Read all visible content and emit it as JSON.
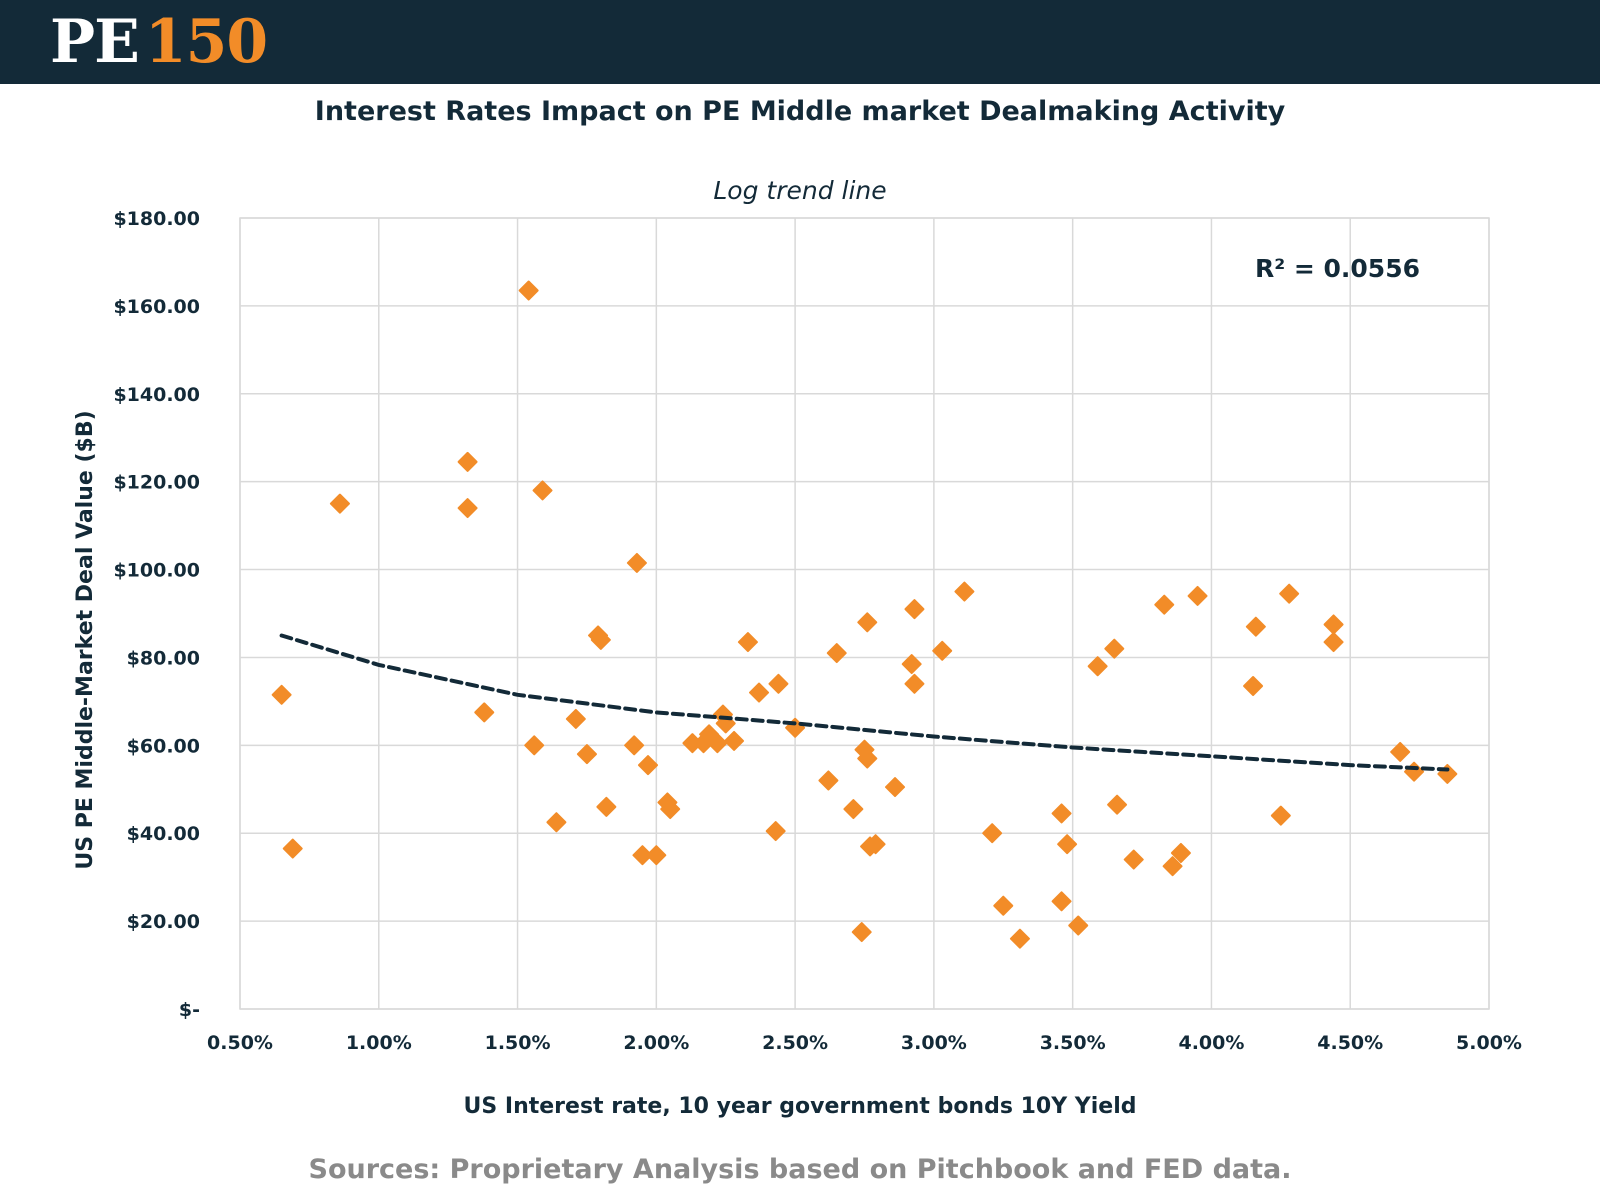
{
  "header": {
    "logo_pe": "PE",
    "logo_num": "150"
  },
  "title": "Interest Rates Impact on PE Middle market Dealmaking Activity",
  "source": "Sources: Proprietary Analysis based on Pitchbook and FED data.",
  "colors": {
    "header_bg": "#132a38",
    "accent": "#f28c28",
    "text_dark": "#132a38",
    "source_text": "#8a8a8a",
    "grid": "#d9d9d9",
    "trend": "#132a38"
  },
  "chart_data": {
    "type": "scatter",
    "subtitle": "Log trend line",
    "xlabel": "US Interest rate, 10 year government bonds 10Y Yield",
    "ylabel": "US PE Middle-Market Deal Value ($B)",
    "xlim": [
      0.5,
      5.0
    ],
    "ylim": [
      0,
      180
    ],
    "x_ticks": [
      0.5,
      1.0,
      1.5,
      2.0,
      2.5,
      3.0,
      3.5,
      4.0,
      4.5,
      5.0
    ],
    "x_tick_labels": [
      "0.50%",
      "1.00%",
      "1.50%",
      "2.00%",
      "2.50%",
      "3.00%",
      "3.50%",
      "4.00%",
      "4.50%",
      "5.00%"
    ],
    "y_ticks": [
      0,
      20,
      40,
      60,
      80,
      100,
      120,
      140,
      160,
      180
    ],
    "y_tick_labels": [
      "$-",
      "$20.00",
      "$40.00",
      "$60.00",
      "$80.00",
      "$100.00",
      "$120.00",
      "$140.00",
      "$160.00",
      "$180.00"
    ],
    "grid": true,
    "r_squared_label": "R² = 0.0556",
    "trendline": {
      "type": "log",
      "style": "dashed",
      "points": [
        [
          0.65,
          85
        ],
        [
          1.0,
          78.3
        ],
        [
          1.5,
          71.5
        ],
        [
          2.0,
          67.5
        ],
        [
          2.5,
          65
        ],
        [
          3.0,
          62
        ],
        [
          3.5,
          59.5
        ],
        [
          4.0,
          57.5
        ],
        [
          4.5,
          55.5
        ],
        [
          4.85,
          54.5
        ]
      ]
    },
    "series": [
      {
        "x": [
          0.65,
          0.69,
          0.86,
          1.32,
          1.32,
          1.38,
          1.54,
          1.56,
          1.59,
          1.64,
          1.71,
          1.75,
          1.79,
          1.8,
          1.82,
          1.92,
          1.93,
          1.95,
          1.97,
          2.0,
          2.04,
          2.05,
          2.13,
          2.17,
          2.19,
          2.22,
          2.24,
          2.25,
          2.28,
          2.33,
          2.37,
          2.43,
          2.44,
          2.5,
          2.62,
          2.65,
          2.71,
          2.74,
          2.75,
          2.76,
          2.76,
          2.77,
          2.79,
          2.86,
          2.92,
          2.93,
          2.93,
          3.03,
          3.11,
          3.21,
          3.25,
          3.31,
          3.46,
          3.46,
          3.48,
          3.52,
          3.59,
          3.65,
          3.66,
          3.72,
          3.83,
          3.86,
          3.89,
          3.95,
          4.15,
          4.16,
          4.25,
          4.28,
          4.44,
          4.44,
          4.68,
          4.73,
          4.85
        ],
        "values": [
          71.5,
          36.5,
          115,
          124.5,
          114,
          67.5,
          163.5,
          60,
          118,
          42.5,
          66,
          58,
          85,
          84,
          46,
          60,
          101.5,
          35,
          55.5,
          35,
          47,
          45.5,
          60.5,
          60.5,
          62.5,
          60.5,
          67,
          65,
          61,
          83.5,
          72,
          40.5,
          74,
          64,
          52,
          81,
          45.5,
          17.5,
          59,
          88,
          57,
          37,
          37.5,
          50.5,
          78.5,
          91,
          74,
          81.5,
          95,
          40,
          23.5,
          16,
          44.5,
          24.5,
          37.5,
          19,
          78,
          82,
          46.5,
          34,
          92,
          32.5,
          35.5,
          94,
          73.5,
          87,
          44,
          94.5,
          87.5,
          83.5,
          58.5,
          54,
          53.5
        ]
      }
    ]
  }
}
